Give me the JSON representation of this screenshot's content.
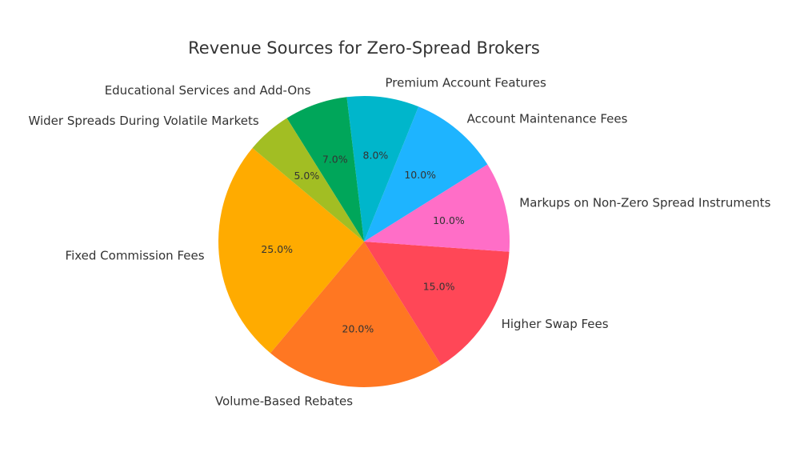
{
  "chart_data": {
    "type": "pie",
    "title": "Revenue Sources for Zero-Spread Brokers",
    "categories": [
      "Fixed Commission Fees",
      "Volume-Based Rebates",
      "Higher Swap Fees",
      "Markups on Non-Zero Spread Instruments",
      "Account Maintenance Fees",
      "Premium Account Features",
      "Educational Services and Add-Ons",
      "Wider Spreads During Volatile Markets"
    ],
    "values": [
      25.0,
      20.0,
      15.0,
      10.0,
      10.0,
      8.0,
      7.0,
      5.0
    ],
    "value_labels": [
      "25.0%",
      "20.0%",
      "15.0%",
      "10.0%",
      "10.0%",
      "8.0%",
      "7.0%",
      "5.0%"
    ],
    "colors": [
      "#FFAB00",
      "#FF7722",
      "#FF4757",
      "#FF6EC7",
      "#1EB4FF",
      "#00B6CB",
      "#00A65A",
      "#A2BE23"
    ],
    "start_angle_deg": 140,
    "direction": "counterclockwise"
  }
}
